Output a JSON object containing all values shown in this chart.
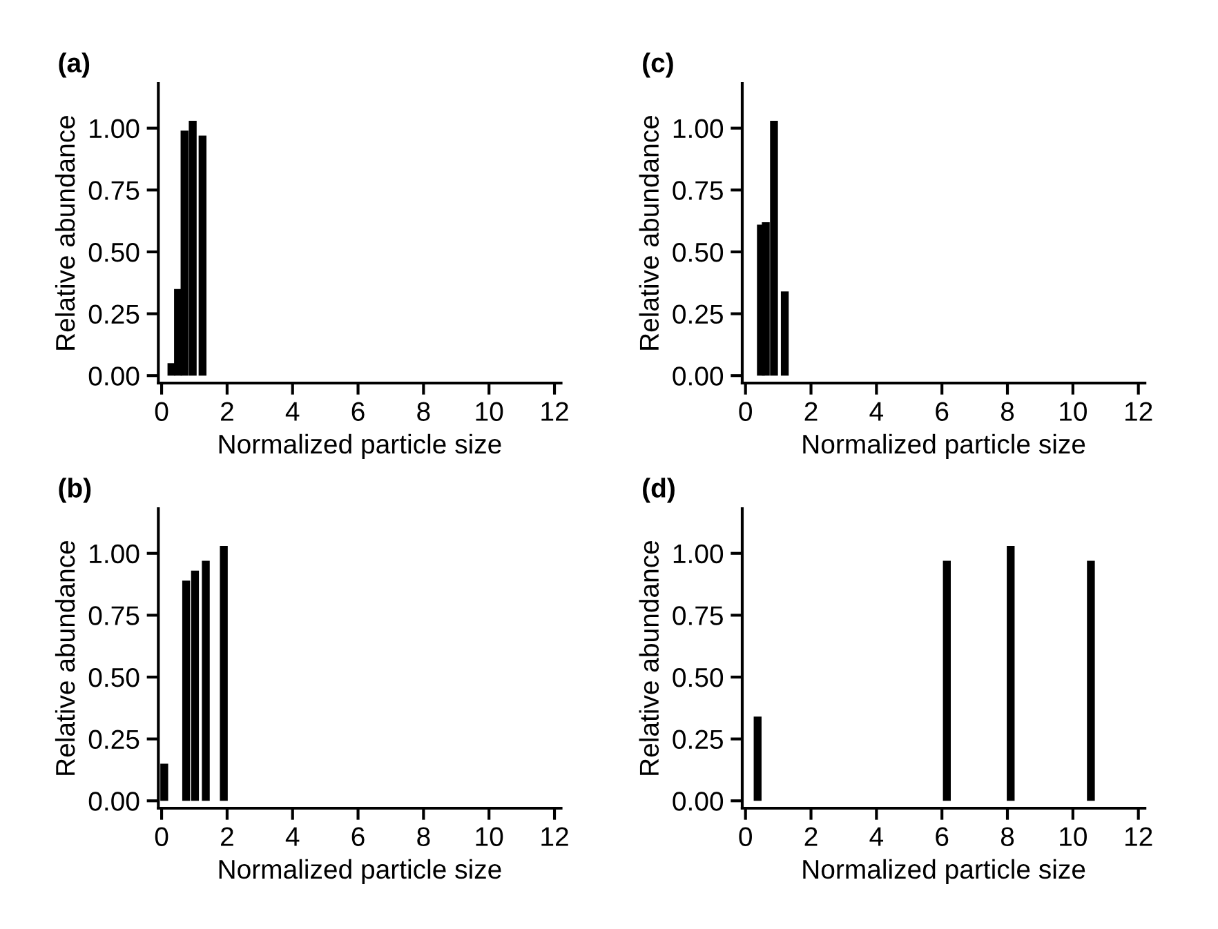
{
  "chart_data": [
    {
      "type": "bar",
      "title": "(a)",
      "xlabel": "Normalized particle size",
      "ylabel": "Relative abundance",
      "x": [
        0.3,
        0.5,
        0.7,
        0.95,
        1.25
      ],
      "values": [
        0.05,
        0.35,
        0.99,
        1.03,
        0.97
      ],
      "color": "#000000",
      "xlim": [
        -0.1,
        12.2
      ],
      "ylim": [
        -0.03,
        1.18
      ],
      "xticks": [
        0,
        2,
        4,
        6,
        8,
        10,
        12
      ],
      "yticks": [
        {
          "value": 0,
          "label": "0.00"
        },
        {
          "value": 0.25,
          "label": "0.25"
        },
        {
          "value": 0.5,
          "label": "0.50"
        },
        {
          "value": 0.75,
          "label": "0.75"
        },
        {
          "value": 1,
          "label": "1.00"
        }
      ],
      "grid": false,
      "legend": false
    },
    {
      "type": "bar",
      "title": "(c)",
      "xlabel": "Normalized particle size",
      "ylabel": "Relative abundance",
      "x": [
        0.47,
        0.62,
        0.87,
        1.2
      ],
      "values": [
        0.61,
        0.62,
        1.03,
        0.34
      ],
      "color": "#000000",
      "xlim": [
        -0.1,
        12.2
      ],
      "ylim": [
        -0.03,
        1.18
      ],
      "xticks": [
        0,
        2,
        4,
        6,
        8,
        10,
        12
      ],
      "yticks": [
        {
          "value": 0,
          "label": "0.00"
        },
        {
          "value": 0.25,
          "label": "0.25"
        },
        {
          "value": 0.5,
          "label": "0.50"
        },
        {
          "value": 0.75,
          "label": "0.75"
        },
        {
          "value": 1,
          "label": "1.00"
        }
      ],
      "grid": false,
      "legend": false
    },
    {
      "type": "bar",
      "title": "(b)",
      "xlabel": "Normalized particle size",
      "ylabel": "Relative abundance",
      "x": [
        0.08,
        0.75,
        1.02,
        1.35,
        1.9
      ],
      "values": [
        0.15,
        0.89,
        0.93,
        0.97,
        1.03
      ],
      "color": "#000000",
      "xlim": [
        -0.1,
        12.2
      ],
      "ylim": [
        -0.03,
        1.18
      ],
      "xticks": [
        0,
        2,
        4,
        6,
        8,
        10,
        12
      ],
      "yticks": [
        {
          "value": 0,
          "label": "0.00"
        },
        {
          "value": 0.25,
          "label": "0.25"
        },
        {
          "value": 0.5,
          "label": "0.50"
        },
        {
          "value": 0.75,
          "label": "0.75"
        },
        {
          "value": 1,
          "label": "1.00"
        }
      ],
      "grid": false,
      "legend": false
    },
    {
      "type": "bar",
      "title": "(d)",
      "xlabel": "Normalized particle size",
      "ylabel": "Relative abundance",
      "x": [
        0.37,
        6.15,
        8.1,
        10.55
      ],
      "values": [
        0.34,
        0.97,
        1.03,
        0.97
      ],
      "color": "#000000",
      "xlim": [
        -0.1,
        12.2
      ],
      "ylim": [
        -0.03,
        1.18
      ],
      "xticks": [
        0,
        2,
        4,
        6,
        8,
        10,
        12
      ],
      "yticks": [
        {
          "value": 0,
          "label": "0.00"
        },
        {
          "value": 0.25,
          "label": "0.25"
        },
        {
          "value": 0.5,
          "label": "0.50"
        },
        {
          "value": 0.75,
          "label": "0.75"
        },
        {
          "value": 1,
          "label": "1.00"
        }
      ],
      "grid": false,
      "legend": false
    }
  ]
}
